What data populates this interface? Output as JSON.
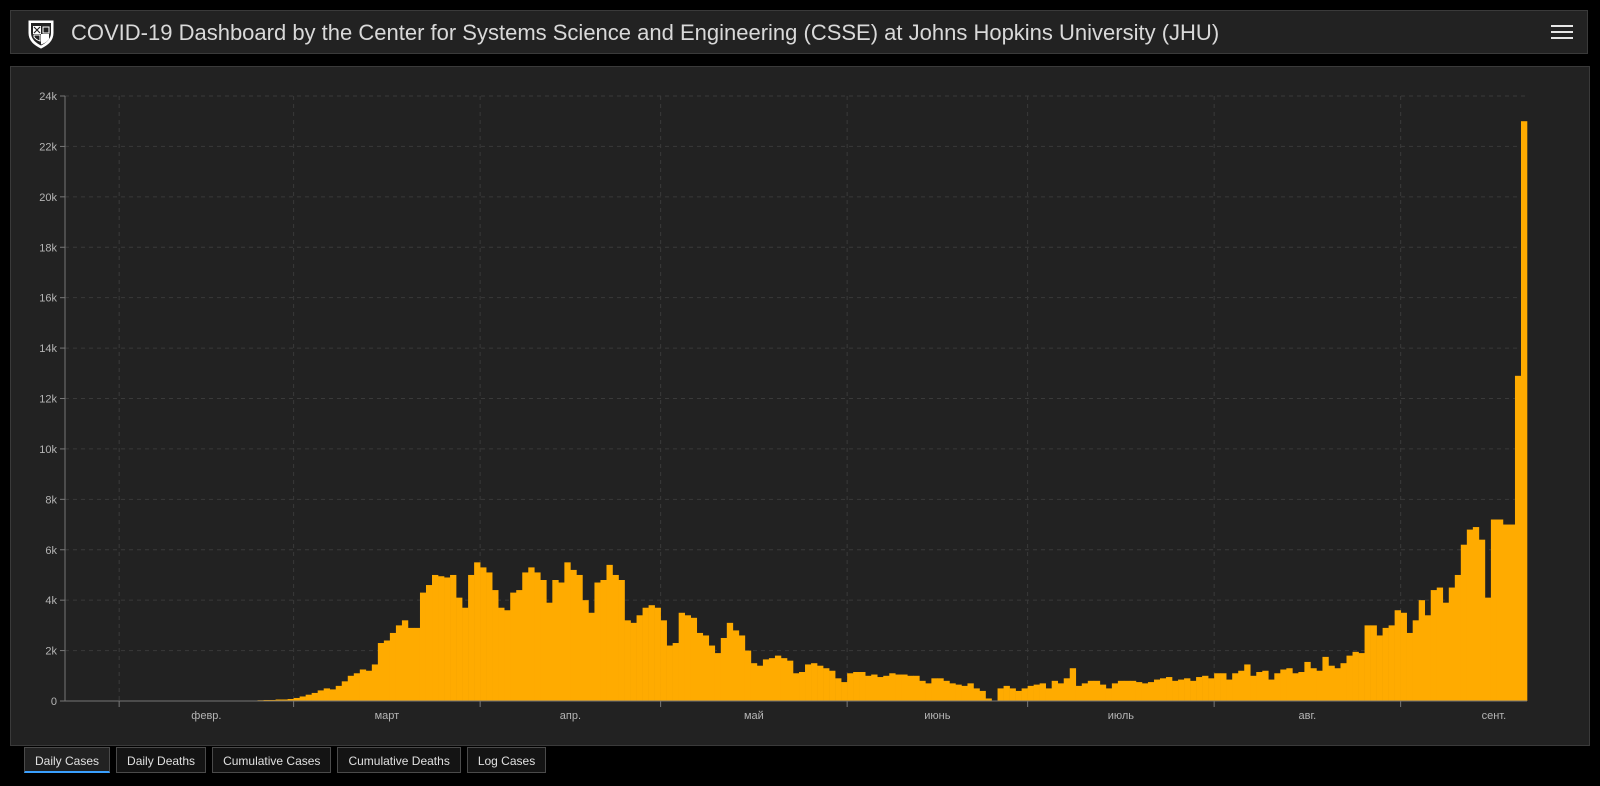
{
  "header": {
    "title": "COVID-19 Dashboard by the Center for Systems Science and Engineering (CSSE) at Johns Hopkins University (JHU)",
    "logo_icon": "jhu-shield-icon",
    "menu_icon": "hamburger-menu-icon"
  },
  "tabs": [
    {
      "label": "Daily Cases",
      "active": true
    },
    {
      "label": "Daily Deaths",
      "active": false
    },
    {
      "label": "Cumulative Cases",
      "active": false
    },
    {
      "label": "Cumulative Deaths",
      "active": false
    },
    {
      "label": "Log Cases",
      "active": false
    }
  ],
  "colors": {
    "bar": "#ffab00",
    "background": "#222222",
    "active_tab": "#3aa0ff"
  },
  "chart_data": {
    "type": "bar",
    "title": "",
    "xlabel": "",
    "ylabel": "",
    "ylim": [
      0,
      24000
    ],
    "grid": true,
    "y_ticks": [
      {
        "value": 0,
        "label": "0"
      },
      {
        "value": 2000,
        "label": "2k"
      },
      {
        "value": 4000,
        "label": "4k"
      },
      {
        "value": 6000,
        "label": "6k"
      },
      {
        "value": 8000,
        "label": "8k"
      },
      {
        "value": 10000,
        "label": "10k"
      },
      {
        "value": 12000,
        "label": "12k"
      },
      {
        "value": 14000,
        "label": "14k"
      },
      {
        "value": 16000,
        "label": "16k"
      },
      {
        "value": 18000,
        "label": "18k"
      },
      {
        "value": 20000,
        "label": "20k"
      },
      {
        "value": 22000,
        "label": "22k"
      },
      {
        "value": 24000,
        "label": "24k"
      }
    ],
    "month_ticks": [
      {
        "day": 9,
        "label": "февр."
      },
      {
        "day": 38,
        "label": "март"
      },
      {
        "day": 69,
        "label": "апр."
      },
      {
        "day": 99,
        "label": "май"
      },
      {
        "day": 130,
        "label": "июнь"
      },
      {
        "day": 160,
        "label": "июль"
      },
      {
        "day": 191,
        "label": "авг."
      },
      {
        "day": 222,
        "label": "сент."
      }
    ],
    "x_start": "2020-01-22",
    "values": [
      0,
      0,
      0,
      0,
      0,
      0,
      0,
      0,
      0,
      0,
      0,
      0,
      0,
      0,
      0,
      0,
      0,
      0,
      0,
      0,
      0,
      0,
      0,
      0,
      0,
      0,
      0,
      0,
      0,
      0,
      20,
      20,
      30,
      40,
      40,
      60,
      60,
      80,
      120,
      180,
      250,
      320,
      420,
      500,
      460,
      600,
      780,
      1000,
      1100,
      1250,
      1200,
      1450,
      2300,
      2400,
      2700,
      3000,
      3200,
      2900,
      2900,
      4300,
      4600,
      5000,
      4950,
      4900,
      5000,
      4100,
      3700,
      5000,
      5500,
      5300,
      5100,
      4400,
      3700,
      3600,
      4300,
      4400,
      5100,
      5300,
      5100,
      4800,
      3900,
      4800,
      4700,
      5500,
      5200,
      5000,
      4000,
      3500,
      4700,
      4800,
      5400,
      5000,
      4800,
      3200,
      3100,
      3400,
      3700,
      3800,
      3700,
      3200,
      2200,
      2300,
      3500,
      3400,
      3300,
      2700,
      2600,
      2200,
      1900,
      2500,
      3100,
      2800,
      2600,
      2000,
      1500,
      1400,
      1650,
      1700,
      1800,
      1700,
      1600,
      1100,
      1150,
      1450,
      1500,
      1400,
      1300,
      1200,
      900,
      750,
      1100,
      1150,
      1150,
      1000,
      1050,
      950,
      1000,
      1100,
      1050,
      1050,
      1000,
      1000,
      800,
      700,
      900,
      900,
      800,
      700,
      650,
      600,
      700,
      500,
      400,
      100,
      0,
      500,
      600,
      500,
      400,
      500,
      600,
      650,
      700,
      500,
      800,
      700,
      900,
      1300,
      600,
      700,
      800,
      800,
      650,
      500,
      700,
      800,
      800,
      800,
      750,
      700,
      750,
      850,
      900,
      950,
      800,
      850,
      900,
      800,
      950,
      1000,
      900,
      1100,
      1100,
      850,
      1100,
      1200,
      1450,
      1000,
      1150,
      1200,
      850,
      1100,
      1250,
      1300,
      1100,
      1150,
      1550,
      1300,
      1200,
      1750,
      1400,
      1300,
      1500,
      1800,
      1950,
      1900,
      3000,
      3000,
      2600,
      2900,
      3000,
      3600,
      3500,
      2700,
      3200,
      4000,
      3400,
      4400,
      4500,
      3900,
      4500,
      5000,
      6200,
      6800,
      6900,
      6400,
      4100,
      7200,
      7200,
      7000,
      7000,
      12900,
      23000
    ]
  }
}
